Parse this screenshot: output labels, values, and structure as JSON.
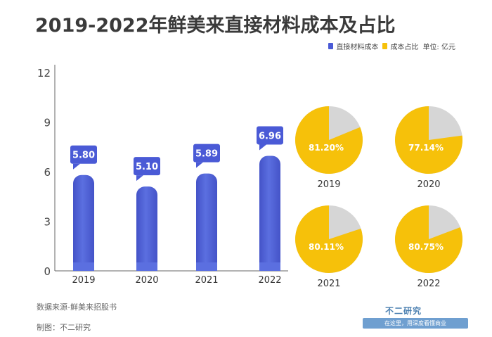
{
  "title": "2019-2022年鲜美来直接材料成本及占比",
  "legend": {
    "series1_label": "直接材料成本",
    "series2_label": "成本占比",
    "unit": "单位: 亿元"
  },
  "colors": {
    "bar": "#5b6fe0",
    "bar_dark": "#4453c8",
    "label_bg": "#4a5ad6",
    "pie_main": "#f6c10a",
    "pie_rest": "#d6d6d6"
  },
  "chart_data": [
    {
      "type": "bar",
      "categories": [
        "2019",
        "2020",
        "2021",
        "2022"
      ],
      "series": [
        {
          "name": "直接材料成本",
          "values": [
            5.8,
            5.1,
            5.89,
            6.96
          ]
        }
      ],
      "data_labels": [
        "5.80",
        "5.10",
        "5.89",
        "6.96"
      ],
      "y_ticks": [
        "0",
        "3",
        "6",
        "9",
        "12"
      ],
      "ylim": [
        0,
        12
      ],
      "grid": false,
      "legend_position": "top-right"
    },
    {
      "type": "pie",
      "name": "成本占比",
      "pies": [
        {
          "year": "2019",
          "label": "81.20%",
          "value": 81.2
        },
        {
          "year": "2020",
          "label": "77.14%",
          "value": 77.14
        },
        {
          "year": "2021",
          "label": "80.11%",
          "value": 80.11
        },
        {
          "year": "2022",
          "label": "80.75%",
          "value": 80.75
        }
      ]
    }
  ],
  "footer": {
    "source": "数据来源-鲜美来招股书",
    "maker": "制图：不二研究",
    "logo": "不二研究",
    "slogan": "在这里，用深度看懂商业"
  }
}
